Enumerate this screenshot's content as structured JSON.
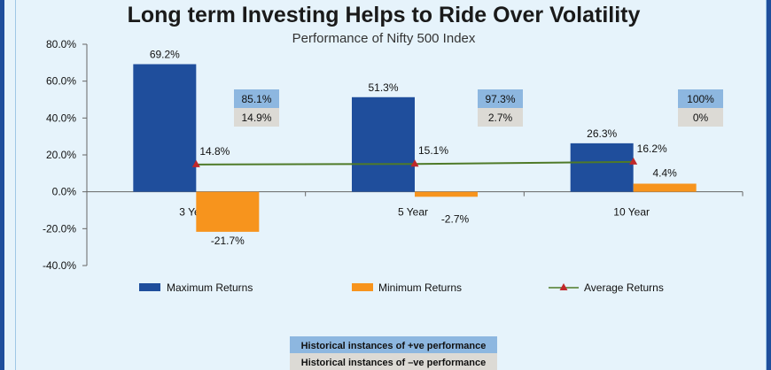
{
  "chart_data": {
    "type": "bar",
    "title": "Long term Investing Helps to Ride Over Volatility",
    "subtitle": "Performance of Nifty 500 Index",
    "categories": [
      "3 Year",
      "5 Year",
      "10 Year"
    ],
    "ylim": [
      -40,
      80
    ],
    "yticks": [
      "80.0%",
      "60.0%",
      "40.0%",
      "20.0%",
      "0.0%",
      "-20.0%",
      "-40.0%"
    ],
    "series": [
      {
        "name": "Maximum Returns",
        "values": [
          69.2,
          51.3,
          26.3
        ],
        "labels": [
          "69.2%",
          "51.3%",
          "26.3%"
        ],
        "color": "#1f4e9c"
      },
      {
        "name": "Minimum Returns",
        "values": [
          -21.7,
          -2.7,
          4.4
        ],
        "labels": [
          "-21.7%",
          "-2.7%",
          "4.4%"
        ],
        "color": "#f7941d"
      },
      {
        "name": "Average Returns",
        "values": [
          14.8,
          15.1,
          16.2
        ],
        "labels": [
          "14.8%",
          "15.1%",
          "16.2%"
        ],
        "color": "#4f7a28",
        "marker_color": "#c0282a"
      }
    ],
    "positive_instances": [
      "85.1%",
      "97.3%",
      "100%"
    ],
    "negative_instances": [
      "14.9%",
      "2.7%",
      "0%"
    ],
    "note_positive": "Historical instances of +ve performance",
    "note_negative": "Historical instances of –ve performance",
    "colors": {
      "positive_box": "#8db7e0",
      "negative_box": "#dcdad5",
      "background": "#e6f3fb",
      "border": "#1f4e9c"
    },
    "grid": false,
    "legend": "bottom"
  }
}
